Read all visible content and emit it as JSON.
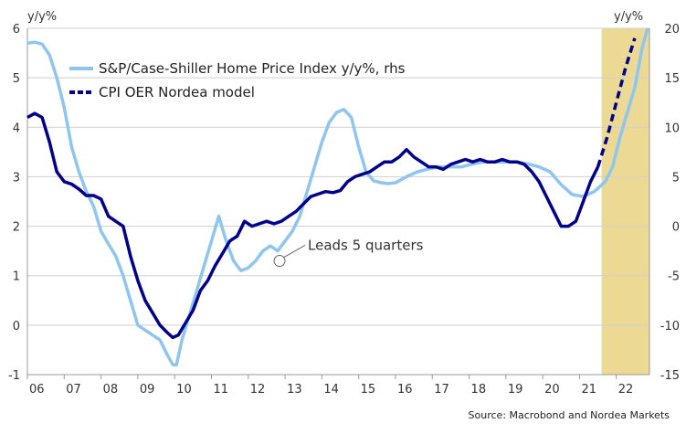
{
  "chart_data": {
    "type": "line",
    "left_axis_unit": "y/y%",
    "right_axis_unit": "y/y%",
    "xlabel": "",
    "ylabel_left": "",
    "ylabel_right": "",
    "ylim_left": [
      -1,
      6
    ],
    "ylim_right": [
      -15,
      20
    ],
    "xlim": [
      2006,
      2022.9
    ],
    "left_ticks": [
      "-1",
      "0",
      "1",
      "2",
      "3",
      "4",
      "5",
      "6"
    ],
    "right_ticks": [
      "-15",
      "-10",
      "-5",
      "0",
      "5",
      "10",
      "15",
      "20"
    ],
    "x_ticks": [
      {
        "x": 2006,
        "label": "06"
      },
      {
        "x": 2007,
        "label": "07"
      },
      {
        "x": 2008,
        "label": "08"
      },
      {
        "x": 2009,
        "label": "09"
      },
      {
        "x": 2010,
        "label": "10"
      },
      {
        "x": 2011,
        "label": "11"
      },
      {
        "x": 2012,
        "label": "12"
      },
      {
        "x": 2013,
        "label": "13"
      },
      {
        "x": 2014,
        "label": "14"
      },
      {
        "x": 2015,
        "label": "15"
      },
      {
        "x": 2016,
        "label": "16"
      },
      {
        "x": 2017,
        "label": "17"
      },
      {
        "x": 2018,
        "label": "18"
      },
      {
        "x": 2019,
        "label": "19"
      },
      {
        "x": 2020,
        "label": "20"
      },
      {
        "x": 2021,
        "label": "21"
      },
      {
        "x": 2022,
        "label": "22"
      }
    ],
    "grid": true,
    "shaded_region": {
      "x_start": 2021.6,
      "x_end": 2022.9,
      "color": "#ecd993"
    },
    "legend": {
      "placement": "top-left"
    },
    "series": [
      {
        "name": "S&P/Case-Shiller Home Price Index y/y%, rhs",
        "axis": "right",
        "color": "#8ec6f0",
        "style": "solid",
        "x": [
          2006.0,
          2006.2,
          2006.4,
          2006.6,
          2006.8,
          2007.0,
          2007.2,
          2007.4,
          2007.6,
          2007.8,
          2008.0,
          2008.2,
          2008.4,
          2008.6,
          2008.8,
          2009.0,
          2009.2,
          2009.4,
          2009.6,
          2009.8,
          2009.95,
          2010.05,
          2010.2,
          2010.4,
          2010.6,
          2010.8,
          2011.0,
          2011.2,
          2011.4,
          2011.6,
          2011.8,
          2012.0,
          2012.2,
          2012.4,
          2012.6,
          2012.8,
          2013.0,
          2013.2,
          2013.4,
          2013.6,
          2013.8,
          2014.0,
          2014.2,
          2014.4,
          2014.6,
          2014.8,
          2015.0,
          2015.2,
          2015.4,
          2015.6,
          2015.8,
          2016.0,
          2016.3,
          2016.6,
          2016.9,
          2017.2,
          2017.5,
          2017.8,
          2018.1,
          2018.4,
          2018.7,
          2019.0,
          2019.3,
          2019.6,
          2019.9,
          2020.2,
          2020.5,
          2020.8,
          2021.1,
          2021.4,
          2021.7,
          2021.9,
          2022.1,
          2022.3,
          2022.5,
          2022.7,
          2022.85
        ],
        "values": [
          18.5,
          18.6,
          18.4,
          17.3,
          15.0,
          12.0,
          8.0,
          5.5,
          3.5,
          2.0,
          -0.5,
          -1.8,
          -3.0,
          -5.0,
          -7.5,
          -10.0,
          -10.5,
          -11.0,
          -11.5,
          -13.0,
          -14.0,
          -14.0,
          -11.5,
          -9.0,
          -6.5,
          -4.0,
          -1.5,
          1.0,
          -1.5,
          -3.5,
          -4.5,
          -4.2,
          -3.5,
          -2.5,
          -2.0,
          -2.5,
          -1.5,
          -0.5,
          1.0,
          3.5,
          6.0,
          8.5,
          10.5,
          11.5,
          11.8,
          11.0,
          8.0,
          5.5,
          4.6,
          4.4,
          4.3,
          4.4,
          5.0,
          5.5,
          5.8,
          6.0,
          6.0,
          6.0,
          6.3,
          6.5,
          6.5,
          6.5,
          6.5,
          6.3,
          6.0,
          5.5,
          4.2,
          3.2,
          3.0,
          3.5,
          4.5,
          6.0,
          9.0,
          11.5,
          14.0,
          18.0,
          20.0
        ]
      },
      {
        "name": "CPI OER Nordea model",
        "axis": "left",
        "color": "#00008b",
        "style": "solid",
        "x": [
          2006.0,
          2006.2,
          2006.4,
          2006.6,
          2006.8,
          2007.0,
          2007.2,
          2007.4,
          2007.6,
          2007.8,
          2008.0,
          2008.2,
          2008.4,
          2008.6,
          2008.8,
          2009.0,
          2009.2,
          2009.4,
          2009.6,
          2009.8,
          2009.95,
          2010.1,
          2010.3,
          2010.5,
          2010.7,
          2010.9,
          2011.1,
          2011.3,
          2011.5,
          2011.7,
          2011.9,
          2012.1,
          2012.3,
          2012.5,
          2012.7,
          2012.9,
          2013.1,
          2013.3,
          2013.5,
          2013.7,
          2013.9,
          2014.1,
          2014.3,
          2014.5,
          2014.7,
          2014.9,
          2015.1,
          2015.3,
          2015.5,
          2015.7,
          2015.9,
          2016.1,
          2016.3,
          2016.5,
          2016.7,
          2016.9,
          2017.1,
          2017.3,
          2017.5,
          2017.7,
          2017.9,
          2018.1,
          2018.3,
          2018.5,
          2018.7,
          2018.9,
          2019.1,
          2019.3,
          2019.5,
          2019.7,
          2019.9,
          2020.1,
          2020.3,
          2020.5,
          2020.7,
          2020.9,
          2021.1,
          2021.3,
          2021.5
        ],
        "values": [
          4.2,
          4.28,
          4.2,
          3.7,
          3.1,
          2.9,
          2.85,
          2.75,
          2.62,
          2.62,
          2.55,
          2.2,
          2.1,
          2.0,
          1.4,
          0.9,
          0.5,
          0.25,
          0.0,
          -0.15,
          -0.25,
          -0.2,
          0.05,
          0.3,
          0.7,
          0.9,
          1.2,
          1.45,
          1.7,
          1.8,
          2.1,
          2.0,
          2.05,
          2.1,
          2.05,
          2.1,
          2.2,
          2.3,
          2.45,
          2.6,
          2.65,
          2.7,
          2.68,
          2.72,
          2.9,
          3.0,
          3.05,
          3.1,
          3.2,
          3.3,
          3.3,
          3.4,
          3.55,
          3.4,
          3.3,
          3.2,
          3.2,
          3.15,
          3.25,
          3.3,
          3.35,
          3.3,
          3.35,
          3.3,
          3.3,
          3.35,
          3.3,
          3.3,
          3.25,
          3.1,
          2.9,
          2.6,
          2.3,
          2.0,
          2.0,
          2.1,
          2.5,
          2.9,
          3.2
        ]
      },
      {
        "name": "CPI OER Nordea model forecast",
        "axis": "left",
        "color": "#00008b",
        "style": "dashed",
        "x": [
          2021.5,
          2021.75,
          2022.0,
          2022.25,
          2022.5
        ],
        "values": [
          3.2,
          3.8,
          4.5,
          5.2,
          5.8
        ]
      }
    ],
    "annotations": [
      {
        "text": "Leads 5 quarters",
        "x": 2012.85,
        "y": 1.3
      }
    ]
  },
  "source": "Source: Macrobond and Nordea Markets"
}
